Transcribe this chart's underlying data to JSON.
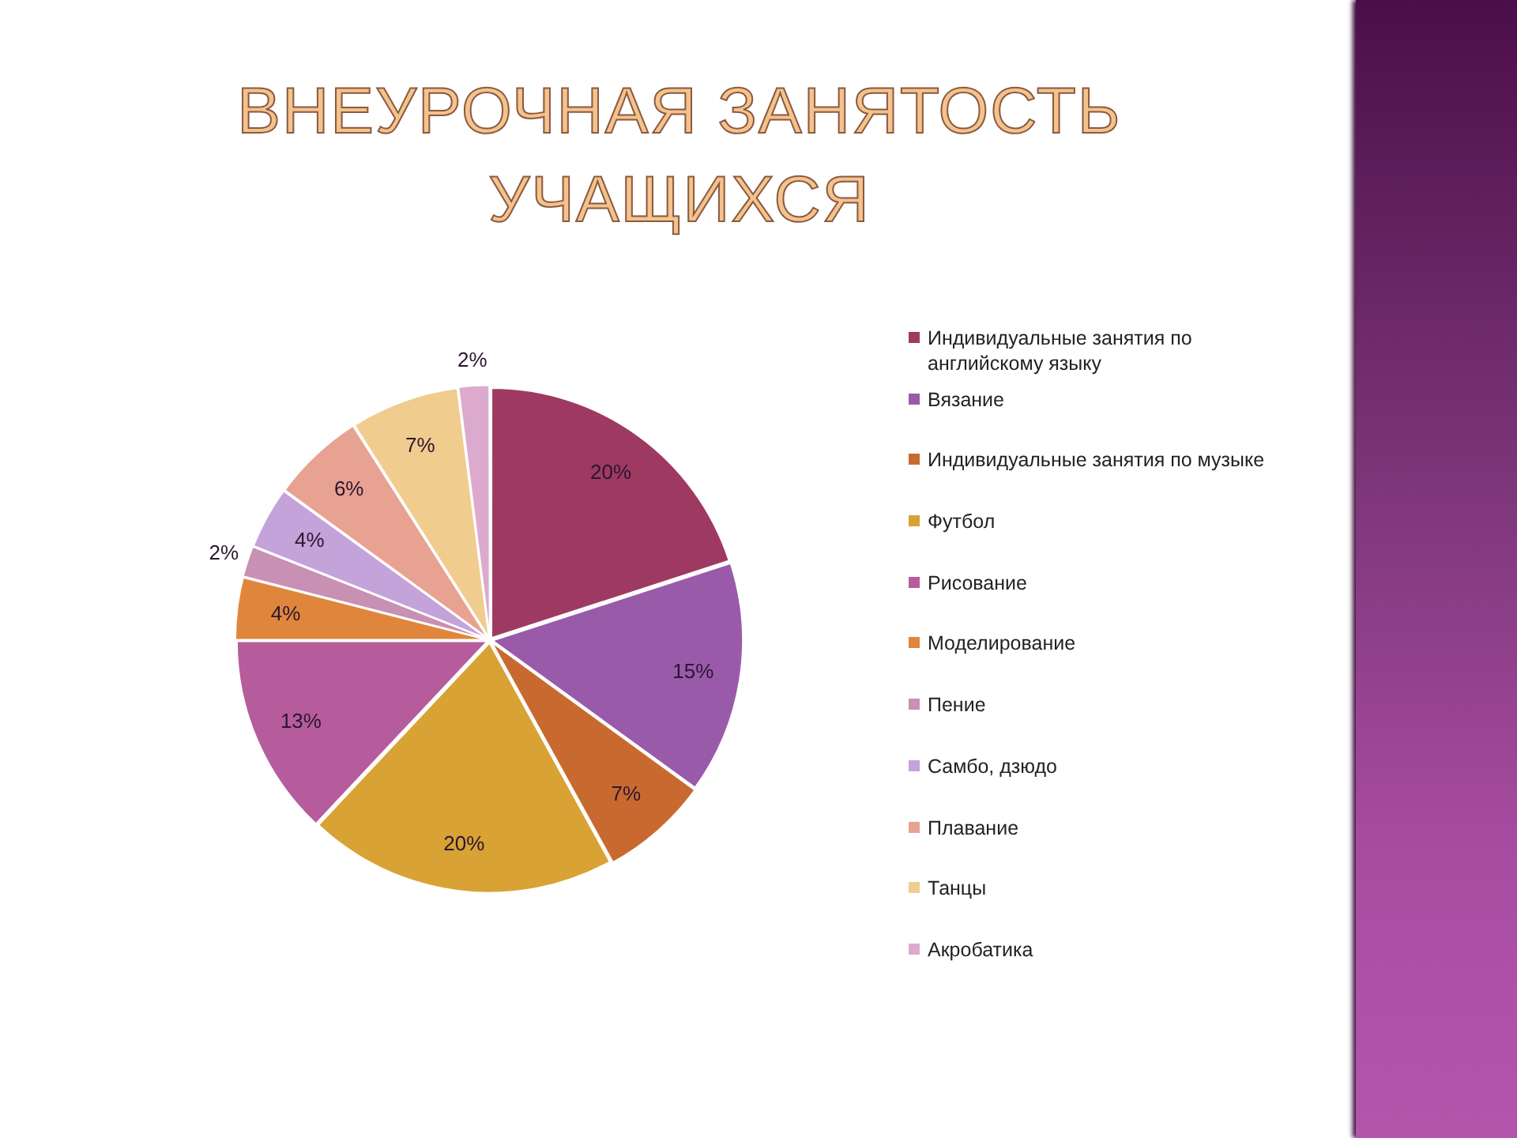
{
  "chart_data": {
    "type": "pie",
    "title": "ВНЕУРОЧНАЯ ЗАНЯТОСТЬ УЧАЩИХСЯ",
    "categories": [
      "Индивидуальные занятия по английскому языку",
      "Вязание",
      "Индивидуальные занятия по музыке",
      "Футбол",
      "Рисование",
      "Моделирование",
      "Пение",
      "Самбо, дзюдо",
      "Плавание",
      "Танцы",
      "Акробатика"
    ],
    "values": [
      20,
      15,
      7,
      20,
      13,
      4,
      2,
      4,
      6,
      7,
      2
    ],
    "colors": [
      "#9e3a62",
      "#9a5aaa",
      "#c86a30",
      "#d9a234",
      "#b65c9c",
      "#e0863c",
      "#c890b2",
      "#c4a2da",
      "#e8a292",
      "#f0cc8e",
      "#dcaacc"
    ],
    "value_labels": [
      "20%",
      "15%",
      "7%",
      "20%",
      "13%",
      "4%",
      "2%",
      "4%",
      "6%",
      "7%",
      "2%"
    ],
    "legend": "right"
  }
}
